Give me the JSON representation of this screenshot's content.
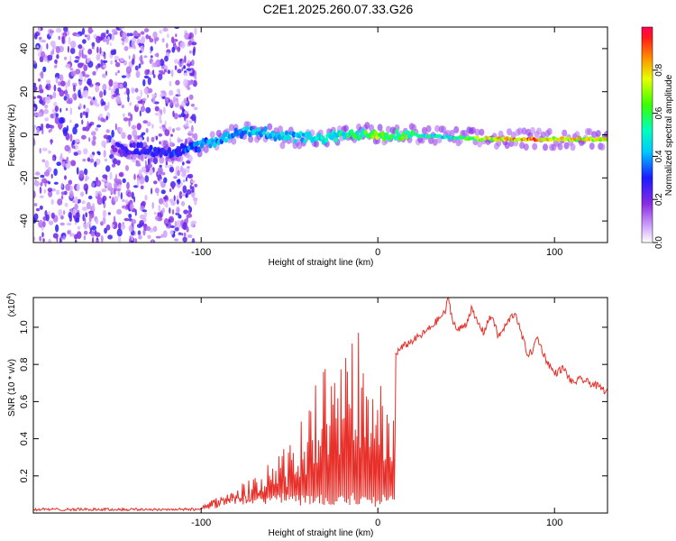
{
  "title": "C2E1.2025.260.07.33.G26",
  "chart_data": [
    {
      "type": "heatmap",
      "title": "C2E1.2025.260.07.33.G26",
      "xlabel": "Height of straight line (km)",
      "ylabel": "Frequency (Hz)",
      "xlim": [
        -195,
        130
      ],
      "ylim": [
        -50,
        50
      ],
      "x_ticks": [
        -100,
        0,
        100
      ],
      "x_tick_labels": [
        "-100",
        "0",
        "100"
      ],
      "y_ticks": [
        -40,
        -20,
        0,
        20,
        40
      ],
      "y_tick_labels": [
        "-40",
        "-20",
        "0",
        "20",
        "40"
      ],
      "colorbar": {
        "label": "Normalized spectral amplitude",
        "range": [
          0,
          1
        ],
        "ticks": [
          0.0,
          0.2,
          0.4,
          0.6,
          0.8
        ],
        "tick_labels": [
          "0.0",
          "0.2",
          "0.4",
          "0.6",
          "0.8"
        ]
      },
      "noise_region": {
        "x_range": [
          -195,
          -103
        ],
        "y_range": [
          -50,
          50
        ],
        "amplitude": [
          0.05,
          0.3
        ]
      },
      "ridge_frequency": {
        "x": [
          -145,
          -130,
          -120,
          -110,
          -100,
          -90,
          -80,
          -70,
          -62,
          -55,
          -45,
          -35,
          -25,
          -15,
          -5,
          0,
          10,
          20,
          40,
          60,
          80,
          100,
          120,
          130
        ],
        "y": [
          -6,
          -7,
          -8,
          -7,
          -5,
          -2,
          0,
          2,
          1,
          -1,
          -1,
          -2,
          -1,
          0,
          1,
          0,
          0,
          0,
          -1,
          -2,
          -2,
          -2,
          -2,
          -2
        ]
      },
      "ridge_amplitude": {
        "x": [
          -145,
          -130,
          -110,
          -90,
          -70,
          -50,
          -30,
          -10,
          0,
          20,
          40,
          60,
          80,
          100,
          120,
          130
        ],
        "y": [
          0.25,
          0.3,
          0.35,
          0.42,
          0.45,
          0.45,
          0.5,
          0.6,
          0.7,
          0.6,
          0.5,
          0.75,
          0.9,
          0.85,
          0.8,
          0.8
        ]
      }
    },
    {
      "type": "line",
      "xlabel": "Height of straight line (km)",
      "ylabel": "SNR (10 * v/v)",
      "scale_label": "(x10^4)",
      "scale_base": "(x10",
      "scale_exp": "4",
      "scale_close": ")",
      "xlim": [
        -195,
        130
      ],
      "ylim": [
        0,
        1.16
      ],
      "x_ticks": [
        -100,
        0,
        100
      ],
      "x_tick_labels": [
        "-100",
        "0",
        "100"
      ],
      "y_ticks": [
        0.2,
        0.4,
        0.6,
        0.8,
        1.0
      ],
      "y_tick_labels": [
        "0.2",
        "0.4",
        "0.6",
        "0.8",
        "1.0"
      ],
      "color": "#e8302a",
      "series": [
        {
          "name": "SNR",
          "x": [
            -195,
            -170,
            -140,
            -125,
            -110,
            -100,
            -95,
            -90,
            -85,
            -80,
            -75,
            -70,
            -65,
            -60,
            -55,
            -50,
            -45,
            -40,
            -35,
            -30,
            -25,
            -20,
            -15,
            -10,
            -5,
            0,
            3,
            5,
            10,
            15,
            20,
            25,
            30,
            35,
            38,
            40,
            42,
            45,
            50,
            53,
            55,
            60,
            62,
            65,
            68,
            70,
            75,
            78,
            80,
            85,
            88,
            90,
            95,
            100,
            105,
            110,
            115,
            120,
            125,
            130
          ],
          "y": [
            0.02,
            0.02,
            0.02,
            0.02,
            0.02,
            0.02,
            0.05,
            0.07,
            0.09,
            0.1,
            0.12,
            0.13,
            0.15,
            0.18,
            0.21,
            0.25,
            0.28,
            0.32,
            0.38,
            0.44,
            0.5,
            0.55,
            0.6,
            0.62,
            0.68,
            0.72,
            0.78,
            0.82,
            0.86,
            0.9,
            0.93,
            0.96,
            1.0,
            1.05,
            1.08,
            1.16,
            1.05,
            0.98,
            1.02,
            1.1,
            1.05,
            0.97,
            1.03,
            1.06,
            0.95,
            0.97,
            1.05,
            1.08,
            1.0,
            0.85,
            0.88,
            0.95,
            0.83,
            0.75,
            0.78,
            0.7,
            0.72,
            0.7,
            0.68,
            0.65
          ]
        }
      ],
      "noise_envelope": {
        "x": [
          -195,
          -140,
          -100,
          -90,
          -80,
          -70,
          -60,
          -50,
          -40,
          -35,
          -30,
          -25,
          -20,
          -15,
          -10,
          -5,
          0,
          5,
          10
        ],
        "y": [
          0.015,
          0.02,
          0.05,
          0.08,
          0.14,
          0.2,
          0.28,
          0.38,
          0.55,
          0.72,
          0.78,
          0.82,
          0.85,
          0.92,
          1.0,
          0.95,
          0.85,
          0.7,
          0.5
        ]
      }
    }
  ]
}
